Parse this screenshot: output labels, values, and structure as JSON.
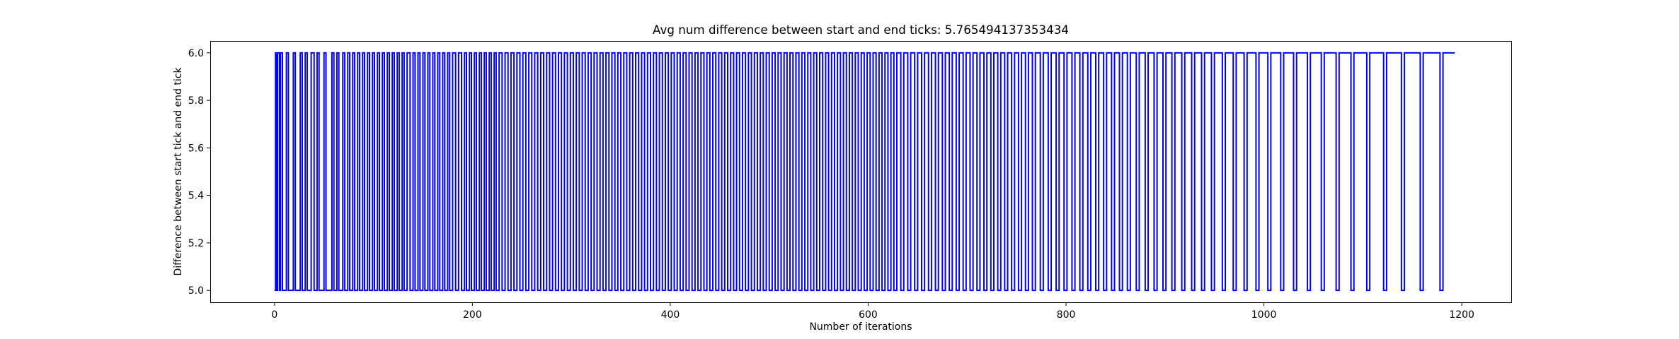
{
  "chart_data": {
    "type": "line",
    "title": "Avg num difference between start and end ticks: 5.765494137353434",
    "xlabel": "Number of iterations",
    "ylabel": "Difference between start tick and end tick",
    "xlim": [
      -65,
      1250
    ],
    "ylim": [
      4.95,
      6.05
    ],
    "x_ticks": [
      0,
      200,
      400,
      600,
      800,
      1000,
      1200
    ],
    "x_tick_labels": [
      "0",
      "200",
      "400",
      "600",
      "800",
      "1000",
      "1200"
    ],
    "y_ticks": [
      5.0,
      5.2,
      5.4,
      5.6,
      5.8,
      6.0
    ],
    "y_tick_labels": [
      "5.0",
      "5.2",
      "5.4",
      "5.6",
      "5.8",
      "6.0"
    ],
    "grid": false,
    "legend": "none",
    "series": [
      {
        "color": "#0000ff",
        "x_start": 0,
        "x_end": 1193,
        "y_values_encoding": "each entry [a,b]: value 5 for a iterations, then value 6 for b iterations, repeating until x_end",
        "runs": [
          [
            1,
            1
          ],
          [
            1,
            2
          ],
          [
            1,
            2
          ],
          [
            4,
            2
          ],
          [
            5,
            2
          ],
          [
            5,
            2
          ],
          [
            3,
            2
          ],
          [
            4,
            3
          ],
          [
            3,
            2
          ],
          [
            5,
            2
          ],
          [
            6,
            2
          ],
          [
            3,
            2
          ],
          [
            4,
            2
          ],
          [
            3,
            2
          ],
          [
            3,
            2
          ],
          [
            3,
            2
          ],
          [
            3,
            2
          ],
          [
            3,
            2
          ],
          [
            3,
            2
          ],
          [
            3,
            2
          ],
          [
            3,
            2
          ],
          [
            3,
            2
          ],
          [
            3,
            2
          ],
          [
            3,
            2
          ],
          [
            3,
            2
          ],
          [
            3,
            3
          ],
          [
            3,
            2
          ],
          [
            3,
            2
          ],
          [
            3,
            2
          ],
          [
            3,
            2
          ],
          [
            3,
            2
          ],
          [
            3,
            2
          ],
          [
            3,
            2
          ],
          [
            3,
            2
          ],
          [
            3,
            3
          ],
          [
            3,
            3
          ],
          [
            3,
            2
          ],
          [
            3,
            2
          ],
          [
            3,
            2
          ],
          [
            3,
            2
          ],
          [
            3,
            2
          ],
          [
            3,
            2
          ],
          [
            3,
            2
          ],
          [
            3,
            3
          ],
          [
            3,
            3
          ],
          [
            3,
            3
          ],
          [
            3,
            3
          ],
          [
            3,
            3
          ],
          [
            3,
            3
          ],
          [
            3,
            3
          ],
          [
            3,
            3
          ],
          [
            3,
            3
          ],
          [
            3,
            3
          ],
          [
            3,
            3
          ],
          [
            3,
            3
          ],
          [
            3,
            3
          ],
          [
            3,
            3
          ],
          [
            3,
            3
          ],
          [
            3,
            3
          ],
          [
            3,
            3
          ],
          [
            3,
            3
          ],
          [
            3,
            3
          ],
          [
            3,
            3
          ],
          [
            3,
            3
          ],
          [
            3,
            3
          ],
          [
            3,
            3
          ],
          [
            3,
            3
          ],
          [
            3,
            3
          ],
          [
            3,
            3
          ],
          [
            3,
            3
          ],
          [
            3,
            3
          ],
          [
            3,
            3
          ],
          [
            3,
            3
          ],
          [
            3,
            3
          ],
          [
            3,
            3
          ],
          [
            3,
            3
          ],
          [
            3,
            3
          ],
          [
            3,
            3
          ],
          [
            3,
            3
          ],
          [
            3,
            3
          ],
          [
            3,
            3
          ],
          [
            3,
            3
          ],
          [
            3,
            3
          ],
          [
            3,
            3
          ],
          [
            3,
            3
          ],
          [
            3,
            3
          ],
          [
            3,
            3
          ],
          [
            3,
            3
          ],
          [
            3,
            3
          ],
          [
            3,
            3
          ],
          [
            3,
            3
          ],
          [
            3,
            3
          ],
          [
            3,
            3
          ],
          [
            3,
            3
          ],
          [
            3,
            3
          ],
          [
            3,
            3
          ],
          [
            3,
            3
          ],
          [
            3,
            3
          ],
          [
            3,
            3
          ],
          [
            3,
            3
          ],
          [
            3,
            3
          ],
          [
            3,
            3
          ],
          [
            3,
            3
          ],
          [
            3,
            3
          ],
          [
            3,
            3
          ],
          [
            3,
            3
          ],
          [
            3,
            3
          ],
          [
            3,
            3
          ],
          [
            3,
            3
          ],
          [
            3,
            3
          ],
          [
            3,
            4
          ],
          [
            3,
            4
          ],
          [
            3,
            4
          ],
          [
            3,
            4
          ],
          [
            3,
            4
          ],
          [
            3,
            4
          ],
          [
            3,
            4
          ],
          [
            3,
            4
          ],
          [
            3,
            4
          ],
          [
            3,
            4
          ],
          [
            3,
            4
          ],
          [
            3,
            4
          ],
          [
            3,
            4
          ],
          [
            3,
            4
          ],
          [
            3,
            4
          ],
          [
            3,
            4
          ],
          [
            3,
            4
          ],
          [
            3,
            4
          ],
          [
            3,
            4
          ],
          [
            3,
            4
          ],
          [
            3,
            5
          ],
          [
            3,
            5
          ],
          [
            3,
            5
          ],
          [
            3,
            5
          ],
          [
            3,
            5
          ],
          [
            3,
            5
          ],
          [
            3,
            5
          ],
          [
            3,
            5
          ],
          [
            3,
            5
          ],
          [
            3,
            5
          ],
          [
            3,
            5
          ],
          [
            3,
            5
          ],
          [
            3,
            6
          ],
          [
            3,
            6
          ],
          [
            3,
            6
          ],
          [
            3,
            6
          ],
          [
            3,
            6
          ],
          [
            3,
            7
          ],
          [
            3,
            7
          ],
          [
            3,
            7
          ],
          [
            3,
            7
          ],
          [
            3,
            8
          ],
          [
            3,
            8
          ],
          [
            3,
            8
          ],
          [
            3,
            9
          ],
          [
            3,
            9
          ],
          [
            3,
            10
          ],
          [
            3,
            10
          ],
          [
            3,
            11
          ],
          [
            3,
            11
          ],
          [
            3,
            12
          ],
          [
            3,
            12
          ],
          [
            3,
            13
          ],
          [
            3,
            14
          ],
          [
            3,
            15
          ],
          [
            3,
            16
          ],
          [
            3,
            17
          ],
          [
            3,
            18
          ],
          [
            3,
            19
          ],
          [
            3,
            20
          ],
          [
            3,
            22
          ]
        ]
      }
    ]
  }
}
